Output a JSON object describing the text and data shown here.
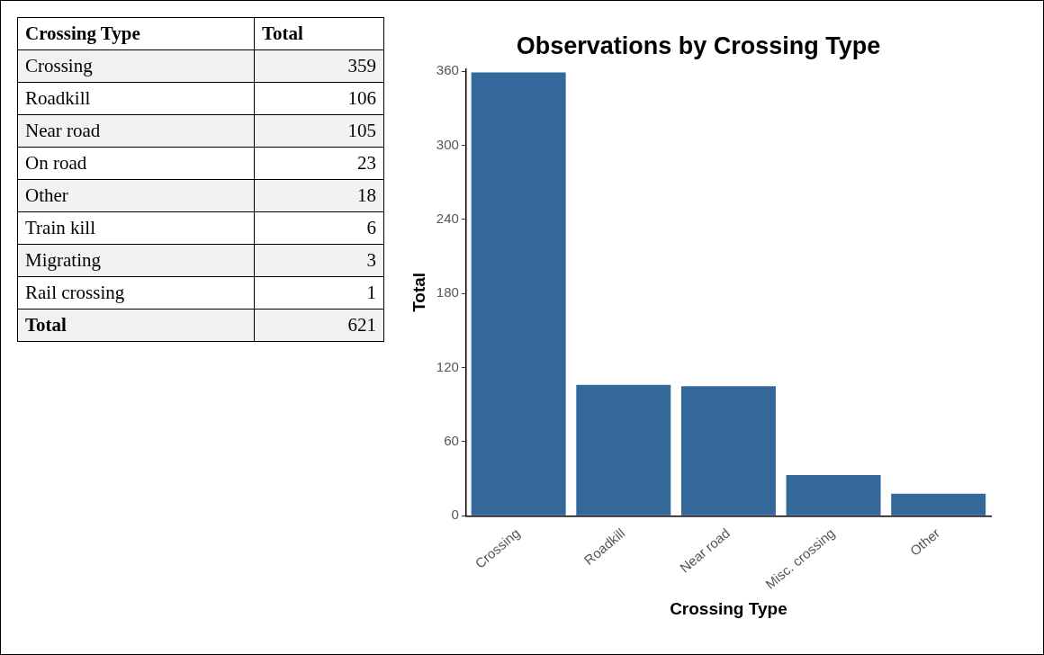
{
  "chart_data": [
    {
      "type": "other",
      "xlabel": "Crossing Type",
      "ylabel": "Total",
      "categories": [
        "Crossing",
        "Roadkill",
        "Near road",
        "On road",
        "Other",
        "Train kill",
        "Migrating",
        "Rail crossing"
      ],
      "values": [
        359,
        106,
        105,
        23,
        18,
        6,
        3,
        1
      ],
      "data_labels": true,
      "annotations": [
        "Total"
      ],
      "totals": [
        "621"
      ]
    },
    {
      "type": "bar",
      "title": "Observations by Crossing Type",
      "xlabel": "Crossing Type",
      "ylabel": "Total",
      "categories": [
        "Crossing",
        "Roadkill",
        "Near road",
        "Misc. crossing",
        "Other"
      ],
      "values": [
        359,
        106,
        105,
        33,
        18
      ],
      "color": "#34679a",
      "ylim": [
        0,
        362
      ],
      "yticks": [
        0,
        60,
        120,
        180,
        240,
        300,
        360
      ],
      "grid": false
    }
  ]
}
